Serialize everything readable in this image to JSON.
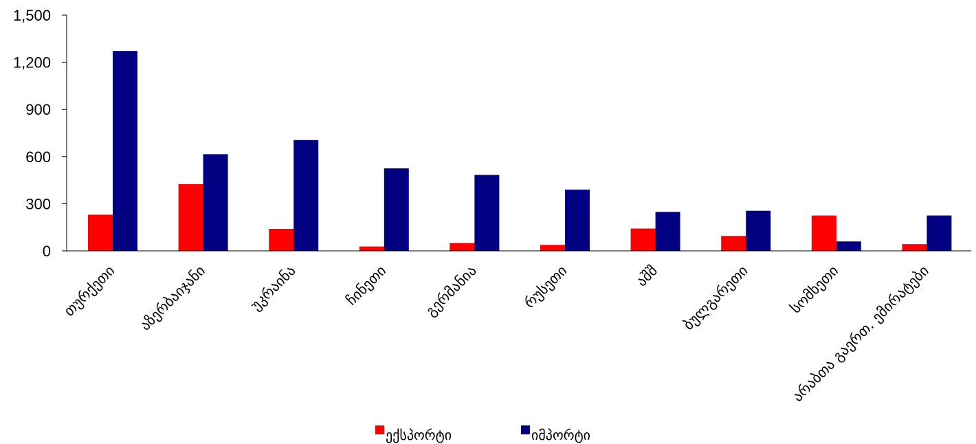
{
  "chart_data": {
    "type": "bar",
    "categories": [
      "თურქეთი",
      "აზერბაიჯანი",
      "უკრაინა",
      "ჩინეთი",
      "გერმანია",
      "რუსეთი",
      "აშშ",
      "ბულგარეთი",
      "სომხეთი",
      "არაბთა გაერთ. ემირატები"
    ],
    "series": [
      {
        "name": "ექსპორტი",
        "color": "#ff0000",
        "values": [
          230,
          425,
          140,
          28,
          50,
          38,
          142,
          95,
          225,
          43
        ]
      },
      {
        "name": "იმპორტი",
        "color": "#000080",
        "values": [
          1272,
          615,
          705,
          525,
          483,
          390,
          248,
          255,
          60,
          225
        ]
      }
    ],
    "yticks": [
      "0",
      "300",
      "600",
      "900",
      "1,200",
      "1,500"
    ],
    "ylim": [
      0,
      1500
    ],
    "grid": false,
    "legend_position": "bottom"
  }
}
